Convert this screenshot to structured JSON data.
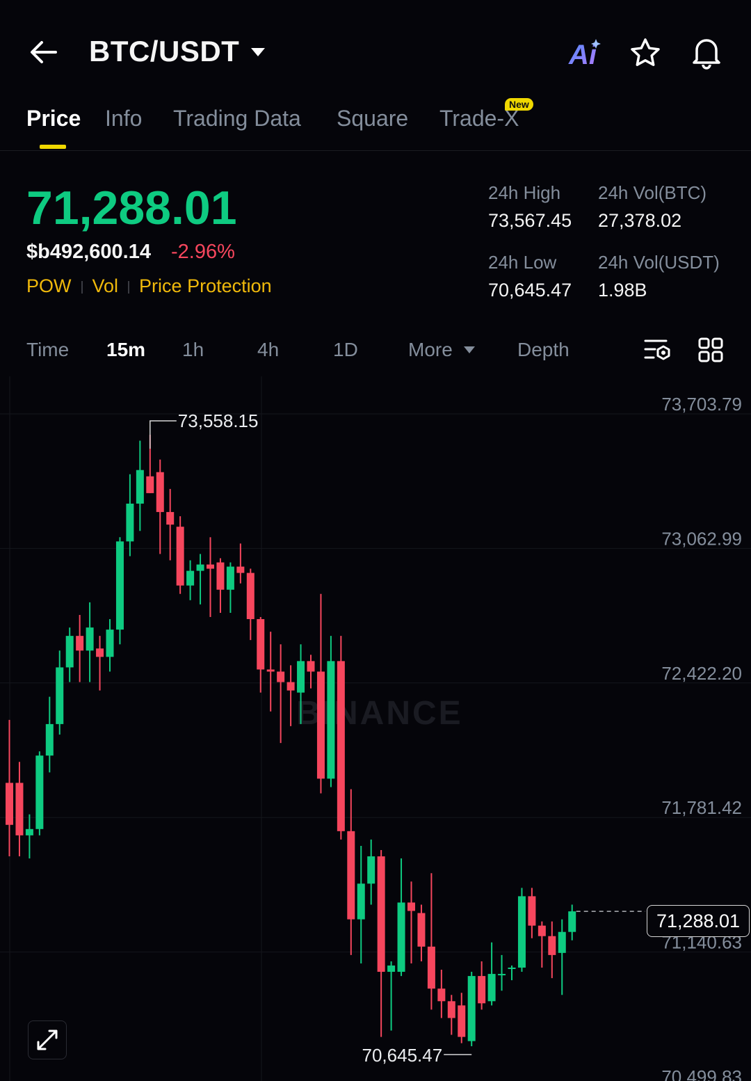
{
  "header": {
    "pair": "BTC/USDT",
    "ai_label": "Ai"
  },
  "tabs": [
    {
      "label": "Price",
      "active": true
    },
    {
      "label": "Info"
    },
    {
      "label": "Trading Data"
    },
    {
      "label": "Square"
    },
    {
      "label": "Trade-X",
      "badge": "New"
    }
  ],
  "ticker": {
    "last_price": "71,288.01",
    "fiat_value": "$b492,600.14",
    "change_pct": "-2.96%",
    "tags": [
      "POW",
      "Vol",
      "Price Protection"
    ],
    "stats": {
      "high_label": "24h High",
      "high": "73,567.45",
      "low_label": "24h Low",
      "low": "70,645.47",
      "vol_btc_label": "24h Vol(BTC)",
      "vol_btc": "27,378.02",
      "vol_usdt_label": "24h Vol(USDT)",
      "vol_usdt": "1.98B"
    }
  },
  "intervals": {
    "items": [
      "Time",
      "15m",
      "1h",
      "4h",
      "1D",
      "More",
      "Depth"
    ],
    "active": "15m"
  },
  "colors": {
    "up": "#0ecb81",
    "down": "#f6465d",
    "accent": "#f0b90b"
  },
  "chart_data": {
    "type": "candlestick",
    "watermark": "BINANCE",
    "y_ticks": [
      "73,703.79",
      "73,062.99",
      "72,422.20",
      "71,781.42",
      "71,140.63",
      "70,499.83"
    ],
    "ylim": [
      70499.83,
      73703.79
    ],
    "current_price": "71,288.01",
    "high_label": "73,558.15",
    "low_label": "70,645.47",
    "candles": [
      {
        "o": 71900.0,
        "h": 72200.0,
        "l": 71550.0,
        "c": 71700.0
      },
      {
        "o": 71900.0,
        "h": 72000.0,
        "l": 71550.0,
        "c": 71650.0
      },
      {
        "o": 71650.0,
        "h": 71750.0,
        "l": 71540.0,
        "c": 71680.0
      },
      {
        "o": 71680.0,
        "h": 72050.0,
        "l": 71650.0,
        "c": 72030.0
      },
      {
        "o": 72030.0,
        "h": 72310.0,
        "l": 71950.0,
        "c": 72180.0
      },
      {
        "o": 72180.0,
        "h": 72530.0,
        "l": 72130.0,
        "c": 72450.0
      },
      {
        "o": 72450.0,
        "h": 72640.0,
        "l": 72380.0,
        "c": 72600.0
      },
      {
        "o": 72600.0,
        "h": 72700.0,
        "l": 72380.0,
        "c": 72530.0
      },
      {
        "o": 72530.0,
        "h": 72760.0,
        "l": 72380.0,
        "c": 72640.0
      },
      {
        "o": 72540.0,
        "h": 72600.0,
        "l": 72340.0,
        "c": 72500.0
      },
      {
        "o": 72500.0,
        "h": 72680.0,
        "l": 72430.0,
        "c": 72630.0
      },
      {
        "o": 72630.0,
        "h": 73070.0,
        "l": 72560.0,
        "c": 73050.0
      },
      {
        "o": 73050.0,
        "h": 73370.0,
        "l": 72980.0,
        "c": 73230.0
      },
      {
        "o": 73230.0,
        "h": 73530.0,
        "l": 73100.0,
        "c": 73390.0
      },
      {
        "o": 73360.0,
        "h": 73558.15,
        "l": 73280.0,
        "c": 73280.0
      },
      {
        "o": 73380.0,
        "h": 73440.0,
        "l": 72990.0,
        "c": 73190.0
      },
      {
        "o": 73190.0,
        "h": 73300.0,
        "l": 72960.0,
        "c": 73130.0
      },
      {
        "o": 73120.0,
        "h": 73170.0,
        "l": 72800.0,
        "c": 72840.0
      },
      {
        "o": 72840.0,
        "h": 72960.0,
        "l": 72770.0,
        "c": 72910.0
      },
      {
        "o": 72910.0,
        "h": 72990.0,
        "l": 72750.0,
        "c": 72940.0
      },
      {
        "o": 72940.0,
        "h": 73070.0,
        "l": 72690.0,
        "c": 72920.0
      },
      {
        "o": 72950.0,
        "h": 72970.0,
        "l": 72710.0,
        "c": 72820.0
      },
      {
        "o": 72820.0,
        "h": 72950.0,
        "l": 72710.0,
        "c": 72930.0
      },
      {
        "o": 72930.0,
        "h": 73040.0,
        "l": 72850.0,
        "c": 72900.0
      },
      {
        "o": 72900.0,
        "h": 72920.0,
        "l": 72580.0,
        "c": 72680.0
      },
      {
        "o": 72680.0,
        "h": 72690.0,
        "l": 72330.0,
        "c": 72440.0
      },
      {
        "o": 72440.0,
        "h": 72620.0,
        "l": 72240.0,
        "c": 72430.0
      },
      {
        "o": 72430.0,
        "h": 72560.0,
        "l": 72090.0,
        "c": 72380.0
      },
      {
        "o": 72380.0,
        "h": 72460.0,
        "l": 72170.0,
        "c": 72340.0
      },
      {
        "o": 72330.0,
        "h": 72560.0,
        "l": 72180.0,
        "c": 72480.0
      },
      {
        "o": 72480.0,
        "h": 72510.0,
        "l": 72350.0,
        "c": 72430.0
      },
      {
        "o": 72430.0,
        "h": 72800.0,
        "l": 71850.0,
        "c": 71920.0
      },
      {
        "o": 71920.0,
        "h": 72600.0,
        "l": 71880.0,
        "c": 72480.0
      },
      {
        "o": 72480.0,
        "h": 72600.0,
        "l": 71630.0,
        "c": 71670.0
      },
      {
        "o": 71670.0,
        "h": 71870.0,
        "l": 71080.0,
        "c": 71250.0
      },
      {
        "o": 71250.0,
        "h": 71600.0,
        "l": 71040.0,
        "c": 71420.0
      },
      {
        "o": 71420.0,
        "h": 71630.0,
        "l": 71320.0,
        "c": 71550.0
      },
      {
        "o": 71550.0,
        "h": 71580.0,
        "l": 70690.0,
        "c": 71000.0
      },
      {
        "o": 71000.0,
        "h": 71050.0,
        "l": 70720.0,
        "c": 71030.0
      },
      {
        "o": 71000.0,
        "h": 71540.0,
        "l": 70980.0,
        "c": 71330.0
      },
      {
        "o": 71330.0,
        "h": 71430.0,
        "l": 71040.0,
        "c": 71290.0
      },
      {
        "o": 71280.0,
        "h": 71320.0,
        "l": 71050.0,
        "c": 71120.0
      },
      {
        "o": 71120.0,
        "h": 71470.0,
        "l": 70820.0,
        "c": 70920.0
      },
      {
        "o": 70920.0,
        "h": 71010.0,
        "l": 70780.0,
        "c": 70860.0
      },
      {
        "o": 70860.0,
        "h": 70890.0,
        "l": 70700.0,
        "c": 70780.0
      },
      {
        "o": 70840.0,
        "h": 70900.0,
        "l": 70660.0,
        "c": 70690.0
      },
      {
        "o": 70670.0,
        "h": 71000.0,
        "l": 70645.47,
        "c": 70980.0
      },
      {
        "o": 70980.0,
        "h": 71050.0,
        "l": 70820.0,
        "c": 70850.0
      },
      {
        "o": 70860.0,
        "h": 71140.0,
        "l": 70840.0,
        "c": 70990.0
      },
      {
        "o": 70990.0,
        "h": 71080.0,
        "l": 70910.0,
        "c": 70990.0
      },
      {
        "o": 71020.0,
        "h": 71030.0,
        "l": 70960.0,
        "c": 71020.0
      },
      {
        "o": 71020.0,
        "h": 71400.0,
        "l": 71000.0,
        "c": 71360.0
      },
      {
        "o": 71360.0,
        "h": 71400.0,
        "l": 71160.0,
        "c": 71220.0
      },
      {
        "o": 71220.0,
        "h": 71240.0,
        "l": 71020.0,
        "c": 71170.0
      },
      {
        "o": 71170.0,
        "h": 71240.0,
        "l": 70970.0,
        "c": 71080.0
      },
      {
        "o": 71090.0,
        "h": 71250.0,
        "l": 70890.0,
        "c": 71190.0
      },
      {
        "o": 71190.0,
        "h": 71320.0,
        "l": 71150.0,
        "c": 71288.01
      }
    ]
  }
}
